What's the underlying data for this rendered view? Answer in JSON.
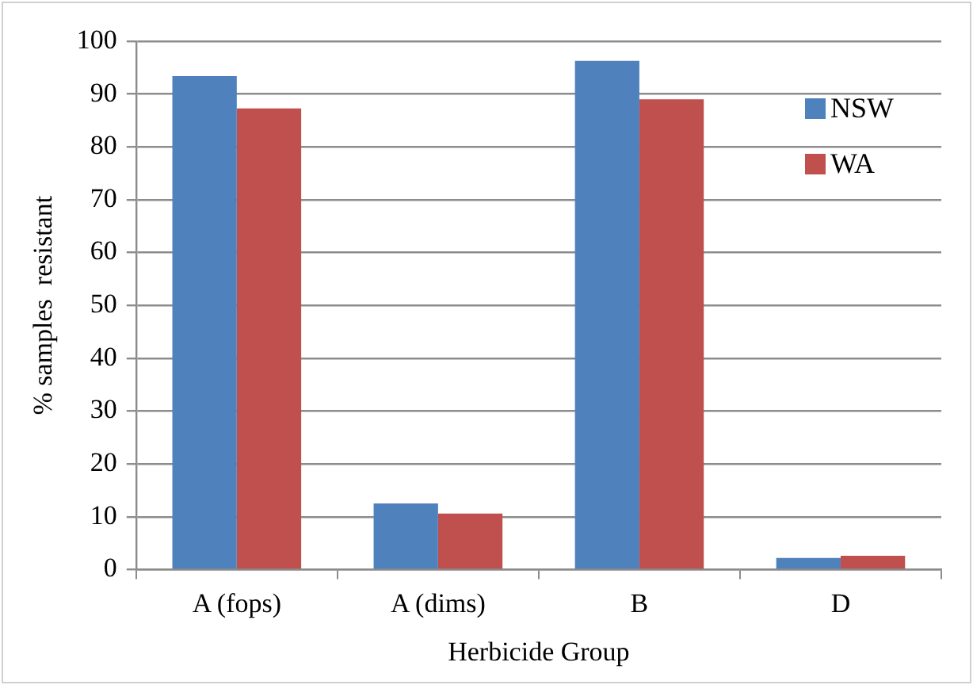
{
  "chart_data": {
    "type": "bar",
    "xlabel": "Herbicide Group",
    "ylabel": "% samples  resistant",
    "categories": [
      "A (fops)",
      "A (dims)",
      "B",
      "D"
    ],
    "series": [
      {
        "name": "NSW",
        "color": "#4f81bd",
        "values": [
          93.4,
          12.5,
          96.3,
          2.2
        ]
      },
      {
        "name": "WA",
        "color": "#c0504d",
        "values": [
          87.3,
          10.6,
          89.0,
          2.6
        ]
      }
    ],
    "ylim": [
      0,
      100
    ],
    "yticks": [
      0,
      10,
      20,
      30,
      40,
      50,
      60,
      70,
      80,
      90,
      100
    ],
    "grid": "y",
    "legend": "top right"
  }
}
